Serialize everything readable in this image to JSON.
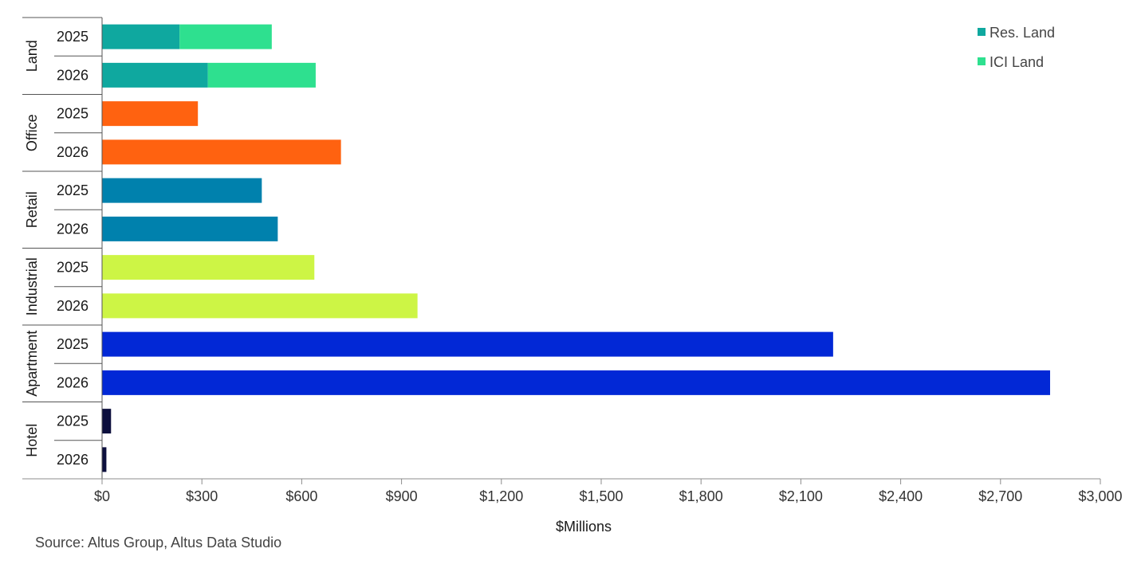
{
  "chart_data": {
    "type": "bar",
    "orientation": "horizontal",
    "stacked": true,
    "xlabel": "$Millions",
    "xlim": [
      0,
      3000
    ],
    "xticks": [
      0,
      300,
      600,
      900,
      1200,
      1500,
      1800,
      2100,
      2400,
      2700,
      3000
    ],
    "xtick_labels": [
      "$0",
      "$300",
      "$600",
      "$900",
      "$1,200",
      "$1,500",
      "$1,800",
      "$2,100",
      "$2,400",
      "$2,700",
      "$3,000"
    ],
    "legend_position": "top-right",
    "legend": [
      {
        "name": "Res. Land",
        "color": "#0fa89f"
      },
      {
        "name": "ICI Land",
        "color": "#2ee08f"
      }
    ],
    "groups": [
      {
        "name": "Land",
        "bars": [
          {
            "year": "2025",
            "segments": [
              {
                "series": "Res. Land",
                "value": 233,
                "color": "#0fa89f"
              },
              {
                "series": "ICI Land",
                "value": 277,
                "color": "#2ee08f"
              }
            ]
          },
          {
            "year": "2026",
            "segments": [
              {
                "series": "Res. Land",
                "value": 318,
                "color": "#0fa89f"
              },
              {
                "series": "ICI Land",
                "value": 324,
                "color": "#2ee08f"
              }
            ]
          }
        ]
      },
      {
        "name": "Office",
        "bars": [
          {
            "year": "2025",
            "segments": [
              {
                "value": 288,
                "color": "#ff6210"
              }
            ]
          },
          {
            "year": "2026",
            "segments": [
              {
                "value": 718,
                "color": "#ff6210"
              }
            ]
          }
        ]
      },
      {
        "name": "Retail",
        "bars": [
          {
            "year": "2025",
            "segments": [
              {
                "value": 480,
                "color": "#0081ad"
              }
            ]
          },
          {
            "year": "2026",
            "segments": [
              {
                "value": 528,
                "color": "#0081ad"
              }
            ]
          }
        ]
      },
      {
        "name": "Industrial",
        "bars": [
          {
            "year": "2025",
            "segments": [
              {
                "value": 638,
                "color": "#cdf545"
              }
            ]
          },
          {
            "year": "2026",
            "segments": [
              {
                "value": 948,
                "color": "#cdf545"
              }
            ]
          }
        ]
      },
      {
        "name": "Apartment",
        "bars": [
          {
            "year": "2025",
            "segments": [
              {
                "value": 2197,
                "color": "#0228d6"
              }
            ]
          },
          {
            "year": "2026",
            "segments": [
              {
                "value": 2849,
                "color": "#0228d6"
              }
            ]
          }
        ]
      },
      {
        "name": "Hotel",
        "bars": [
          {
            "year": "2025",
            "segments": [
              {
                "value": 27,
                "color": "#0c0f3d"
              }
            ]
          },
          {
            "year": "2026",
            "segments": [
              {
                "value": 13,
                "color": "#0c0f3d"
              }
            ]
          }
        ]
      }
    ]
  },
  "source": "Source:  Altus Group, Altus Data Studio"
}
